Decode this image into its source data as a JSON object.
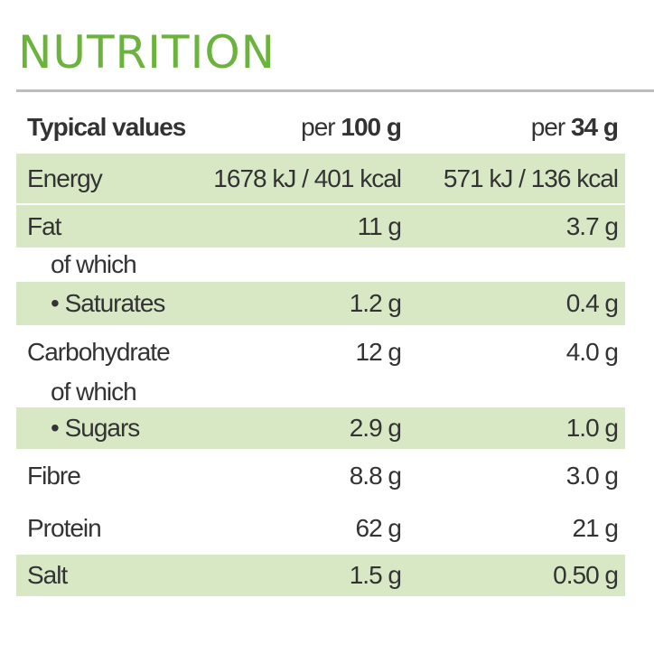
{
  "title": "NUTRITION",
  "header": {
    "label": "Typical values",
    "col1_prefix": "per",
    "col1_qty": "100 g",
    "col2_prefix": "per",
    "col2_qty": "34 g"
  },
  "rows": [
    {
      "label": "Energy",
      "per100": "1678 kJ / 401 kcal",
      "perServing": "571 kJ / 136 kcal"
    },
    {
      "label": "Fat",
      "per100": "11 g",
      "perServing": "3.7 g"
    },
    {
      "label": "of which",
      "per100": "",
      "perServing": ""
    },
    {
      "label": "• Saturates",
      "per100": "1.2 g",
      "perServing": "0.4 g"
    },
    {
      "label": "Carbohydrate",
      "per100": "12 g",
      "perServing": "4.0 g"
    },
    {
      "label": "of which",
      "per100": "",
      "perServing": ""
    },
    {
      "label": "• Sugars",
      "per100": "2.9 g",
      "perServing": "1.0 g"
    },
    {
      "label": "Fibre",
      "per100": "8.8 g",
      "perServing": "3.0 g"
    },
    {
      "label": "Protein",
      "per100": "62 g",
      "perServing": "21 g"
    },
    {
      "label": "Salt",
      "per100": "1.5 g",
      "perServing": "0.50 g"
    }
  ],
  "colors": {
    "title": "#6cb33e",
    "shade": "#d8e8c5",
    "rule": "#bdbdbd",
    "text": "#333333"
  }
}
